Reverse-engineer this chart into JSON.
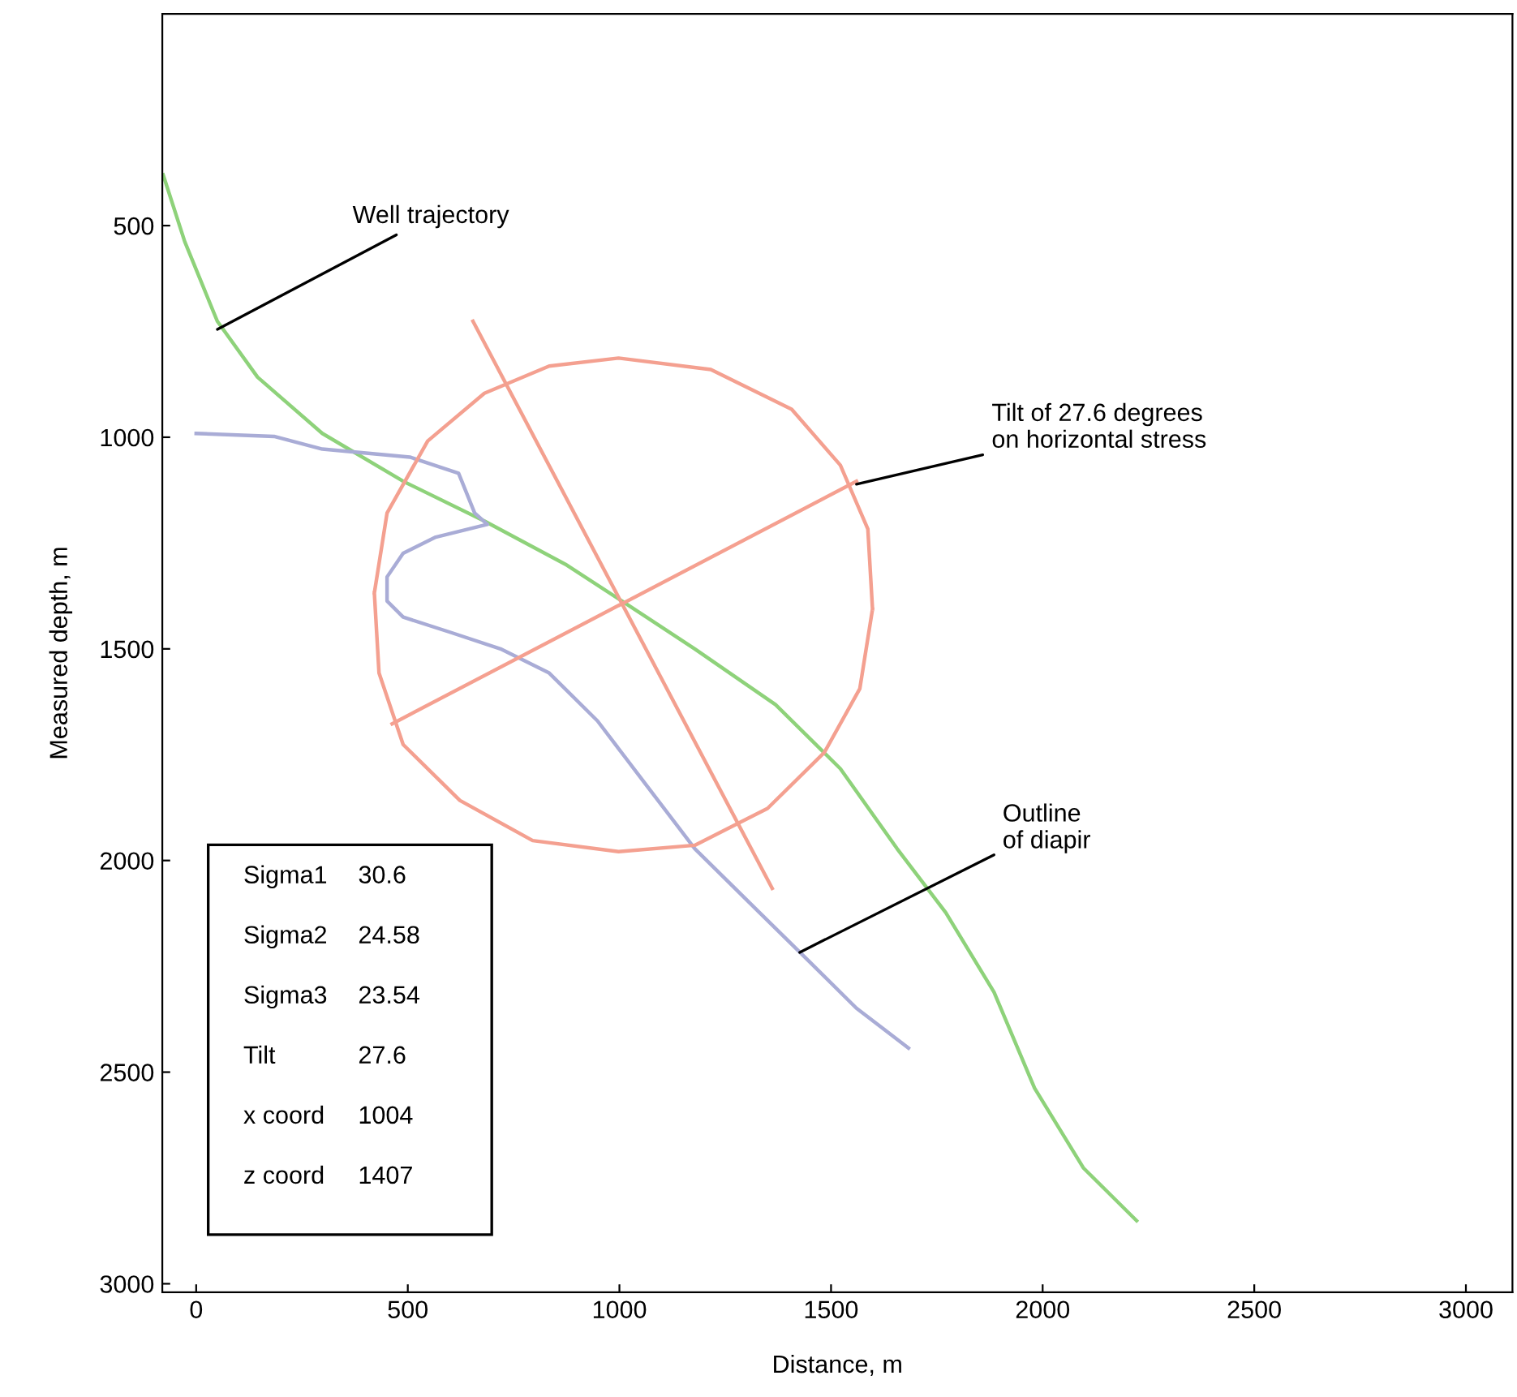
{
  "chart_data": {
    "type": "line",
    "xlabel": "Distance, m",
    "ylabel": "Measured depth, m",
    "xlim": [
      -80,
      3110
    ],
    "ylim": [
      3020,
      0
    ],
    "xticks": [
      0,
      500,
      1000,
      1500,
      2000,
      2500,
      3000
    ],
    "yticks": [
      500,
      1000,
      1500,
      2000,
      2500,
      3000
    ],
    "grid": false,
    "marker": "none",
    "line_style": "solid",
    "series": [
      {
        "color": "#8ed27a",
        "x": [
          -78,
          -27,
          50,
          145,
          298,
          489,
          681,
          872,
          1006,
          1178,
          1369,
          1522,
          1656,
          1771,
          1885,
          1981,
          2096,
          2222
        ],
        "values": [
          380,
          538,
          726,
          858,
          991,
          1104,
          1198,
          1300,
          1387,
          1500,
          1632,
          1783,
          1972,
          2123,
          2311,
          2538,
          2726,
          2851
        ]
      },
      {
        "color": "#a9acd6",
        "x": [
          0,
          184,
          298,
          505,
          620,
          658,
          688,
          566,
          489,
          451,
          451,
          489,
          604,
          719,
          834,
          948,
          1063,
          1178,
          1331,
          1446,
          1560,
          1683
        ],
        "values": [
          991,
          998,
          1028,
          1047,
          1085,
          1179,
          1206,
          1236,
          1274,
          1330,
          1387,
          1425,
          1462,
          1500,
          1557,
          1670,
          1821,
          1972,
          2123,
          2236,
          2349,
          2443
        ]
      },
      {
        "color": "#f4a090",
        "x": [
          421,
          451,
          547,
          681,
          834,
          998,
          1216,
          1407,
          1522,
          1587,
          1598,
          null,
          421,
          432,
          489,
          623,
          795,
          998,
          1178,
          1350,
          1484,
          1568,
          1598
        ],
        "values": [
          1368,
          1179,
          1009,
          896,
          832,
          813,
          840,
          934,
          1066,
          1217,
          1406,
          null,
          1368,
          1557,
          1726,
          1858,
          1953,
          1979,
          1964,
          1877,
          1745,
          1594,
          1406
        ]
      },
      {
        "color": "#f3a08f",
        "x": [
          654,
          1361
        ],
        "values": [
          726,
          2066
        ]
      },
      {
        "color": "#f5a090",
        "x": [
          463,
          1560
        ],
        "values": [
          1677,
          1104
        ]
      }
    ],
    "annotations": [
      {
        "text": "Well trajectory",
        "x": 50,
        "y": 745
      },
      {
        "text": "Tilt of 27.6 degrees\non horizontal stress",
        "x": 1560,
        "y": 1111
      },
      {
        "text": "Outline\nof diapir",
        "x": 1426,
        "y": 2217
      },
      "Sigma1\t30.6",
      "Sigma2\t24.58",
      "Sigma3\t23.54",
      "Tilt\t27.6",
      "x coord\t1004",
      "z coord\t1407"
    ]
  }
}
